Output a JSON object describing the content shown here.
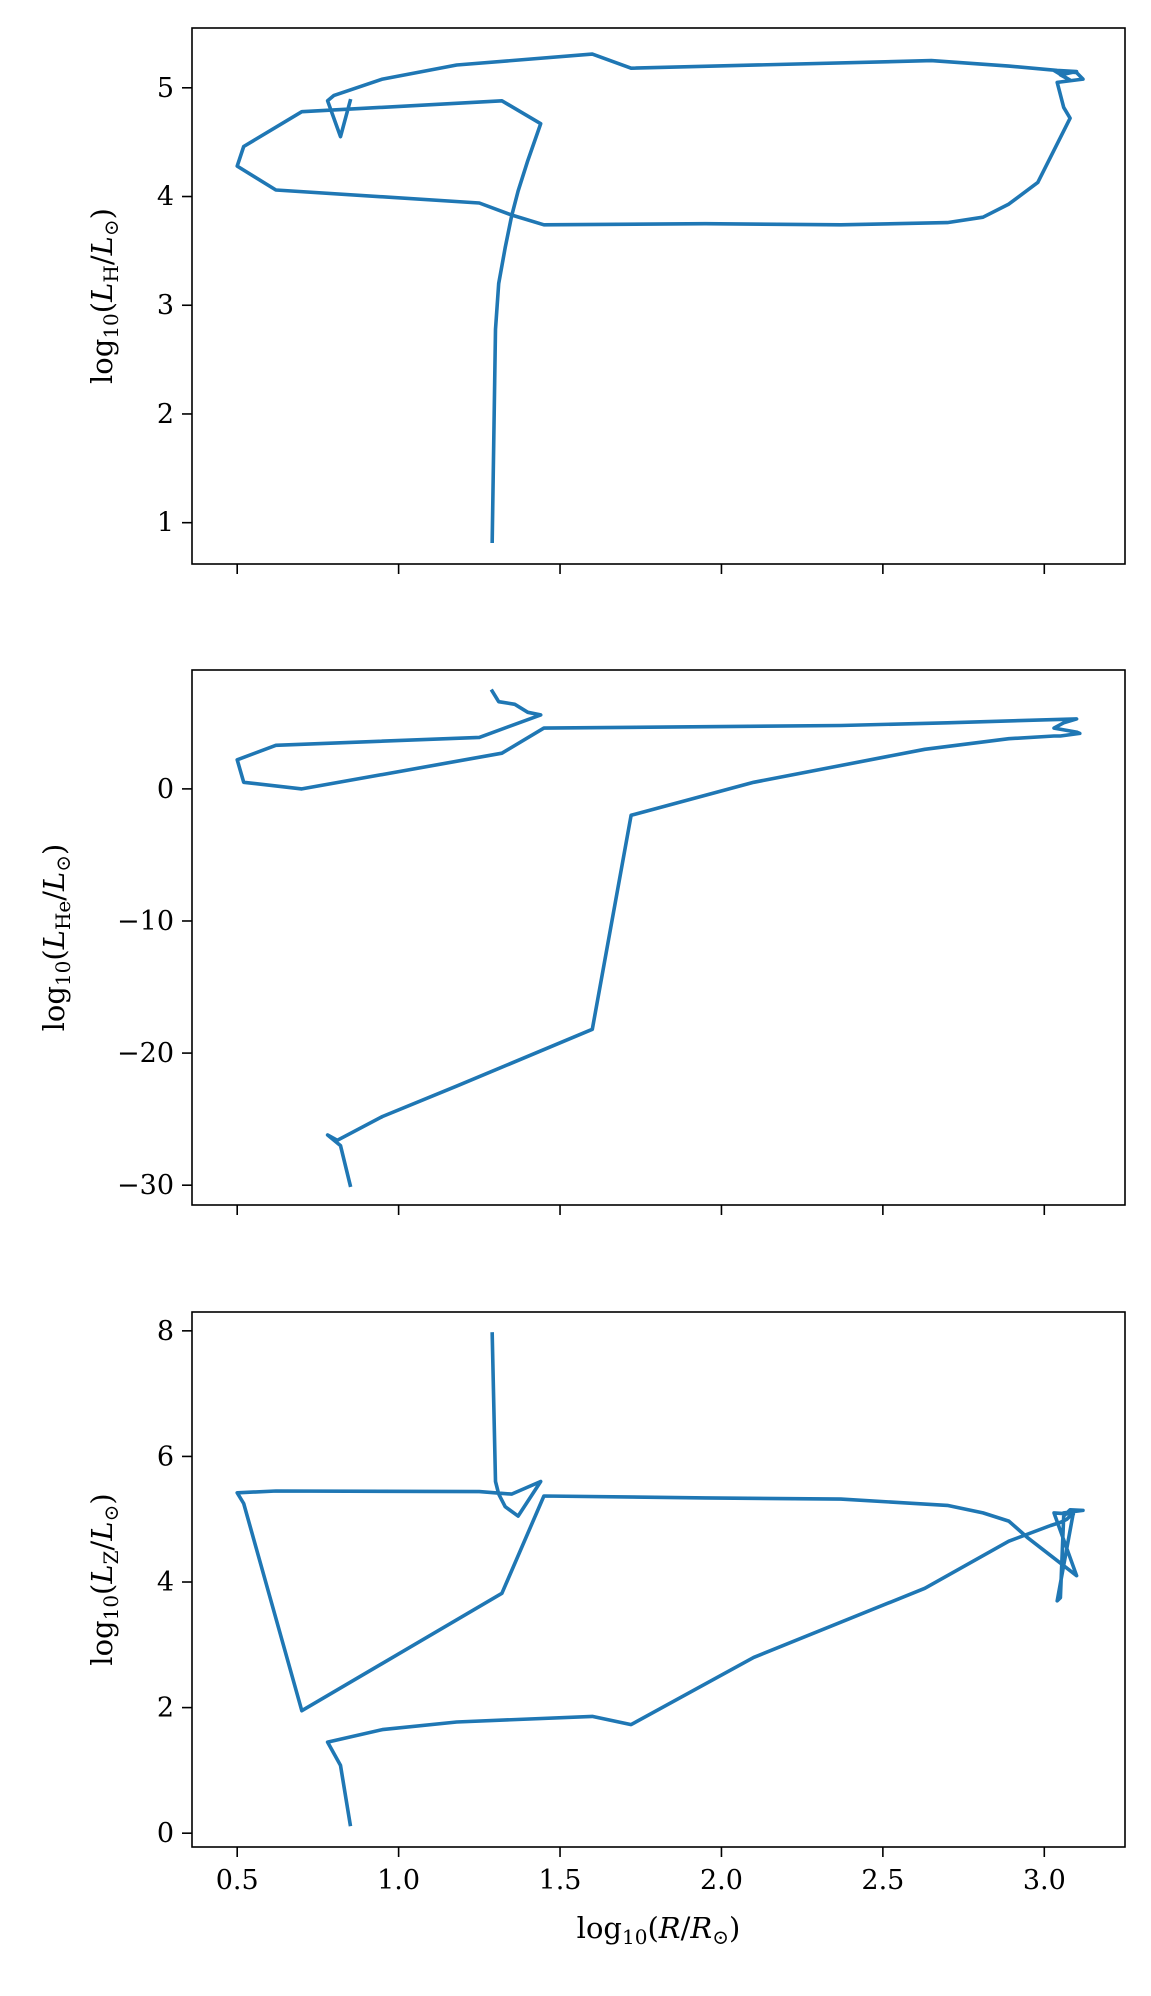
{
  "colors": {
    "series": "#1f77b4",
    "axes": "#000000",
    "background": "#ffffff"
  },
  "shared_x": {
    "label": "log10(R/R⊙)",
    "lim": [
      0.36,
      3.25
    ],
    "ticks": [
      0.5,
      1.0,
      1.5,
      2.0,
      2.5,
      3.0
    ],
    "tick_labels": [
      "0.5",
      "1.0",
      "1.5",
      "2.0",
      "2.5",
      "3.0"
    ]
  },
  "chart_data": [
    {
      "type": "line",
      "ylabel": "log10(L_H/L⊙)",
      "ylim": [
        0.62,
        5.55
      ],
      "yticks": [
        1,
        2,
        3,
        4,
        5
      ],
      "ytick_labels": [
        "1",
        "2",
        "3",
        "4",
        "5"
      ],
      "grid": false,
      "series": [
        {
          "x": [
            1.29,
            1.3,
            1.31,
            1.33,
            1.35,
            1.37,
            1.4,
            1.44,
            1.32,
            0.7,
            0.52,
            0.5,
            0.62,
            1.25,
            1.35,
            1.45,
            1.95,
            2.37,
            2.7,
            2.81,
            2.89,
            2.98,
            3.08,
            3.06,
            3.06,
            3.04,
            3.12,
            3.1,
            3.03,
            3.08,
            3.05,
            3.1,
            3.04,
            2.89,
            2.65,
            1.72,
            1.6,
            1.18,
            0.95,
            0.8,
            0.78,
            0.82,
            0.85
          ],
          "y": [
            0.83,
            2.78,
            3.2,
            3.53,
            3.82,
            4.05,
            4.33,
            4.67,
            4.88,
            4.78,
            4.46,
            4.28,
            4.06,
            3.94,
            3.83,
            3.74,
            3.75,
            3.74,
            3.76,
            3.81,
            3.93,
            4.13,
            4.72,
            4.82,
            4.82,
            5.05,
            5.08,
            5.14,
            5.16,
            5.07,
            5.12,
            5.15,
            5.16,
            5.2,
            5.25,
            5.18,
            5.31,
            5.21,
            5.08,
            4.93,
            4.88,
            4.55,
            4.88
          ]
        }
      ]
    },
    {
      "type": "line",
      "ylabel": "log10(L_He/L⊙)",
      "ylim": [
        -31.5,
        9.0
      ],
      "yticks": [
        -30,
        -20,
        -10,
        0
      ],
      "ytick_labels": [
        "−30",
        "−20",
        "−10",
        "0"
      ],
      "grid": false,
      "series": [
        {
          "x": [
            0.85,
            0.82,
            0.78,
            0.81,
            0.95,
            1.18,
            1.6,
            1.72,
            2.1,
            2.63,
            2.89,
            3.03,
            3.05,
            3.11,
            3.1,
            3.03,
            3.06,
            3.1,
            2.7,
            2.37,
            1.45,
            1.32,
            0.7,
            0.52,
            0.5,
            0.62,
            1.25,
            1.44,
            1.4,
            1.36,
            1.31,
            1.29
          ],
          "y": [
            -30.0,
            -27.0,
            -26.2,
            -26.6,
            -24.8,
            -22.5,
            -18.2,
            -2.0,
            0.5,
            3.0,
            3.8,
            4.0,
            4.0,
            4.2,
            4.3,
            4.6,
            5.0,
            5.3,
            5.0,
            4.8,
            4.6,
            2.7,
            0.0,
            0.5,
            2.2,
            3.3,
            3.9,
            5.6,
            5.8,
            6.4,
            6.6,
            7.4
          ]
        }
      ]
    },
    {
      "type": "line",
      "ylabel": "log10(L_Z/L⊙)",
      "ylim": [
        -0.22,
        8.3
      ],
      "yticks": [
        0,
        2,
        4,
        6,
        8
      ],
      "ytick_labels": [
        "0",
        "2",
        "4",
        "6",
        "8"
      ],
      "grid": false,
      "series": [
        {
          "x": [
            0.85,
            0.82,
            0.78,
            0.95,
            1.18,
            1.6,
            1.72,
            2.1,
            2.63,
            2.89,
            3.02,
            3.05,
            3.07,
            3.09,
            3.04,
            3.05,
            3.06,
            3.08,
            3.12,
            3.06,
            3.09,
            3.03,
            3.1,
            2.95,
            2.89,
            2.81,
            2.7,
            2.37,
            1.95,
            1.45,
            1.32,
            0.7,
            0.52,
            0.5,
            0.62,
            1.25,
            1.35,
            1.44,
            1.37,
            1.33,
            1.31,
            1.3,
            1.29
          ],
          "y": [
            0.14,
            1.08,
            1.45,
            1.65,
            1.77,
            1.86,
            1.73,
            2.8,
            3.9,
            4.65,
            4.9,
            4.95,
            5.0,
            5.1,
            3.7,
            3.75,
            5.05,
            5.15,
            5.14,
            5.1,
            5.08,
            5.1,
            4.1,
            4.7,
            4.97,
            5.1,
            5.22,
            5.32,
            5.34,
            5.37,
            3.82,
            1.95,
            5.25,
            5.42,
            5.45,
            5.44,
            5.4,
            5.6,
            5.05,
            5.2,
            5.4,
            5.6,
            7.95
          ]
        }
      ]
    }
  ]
}
